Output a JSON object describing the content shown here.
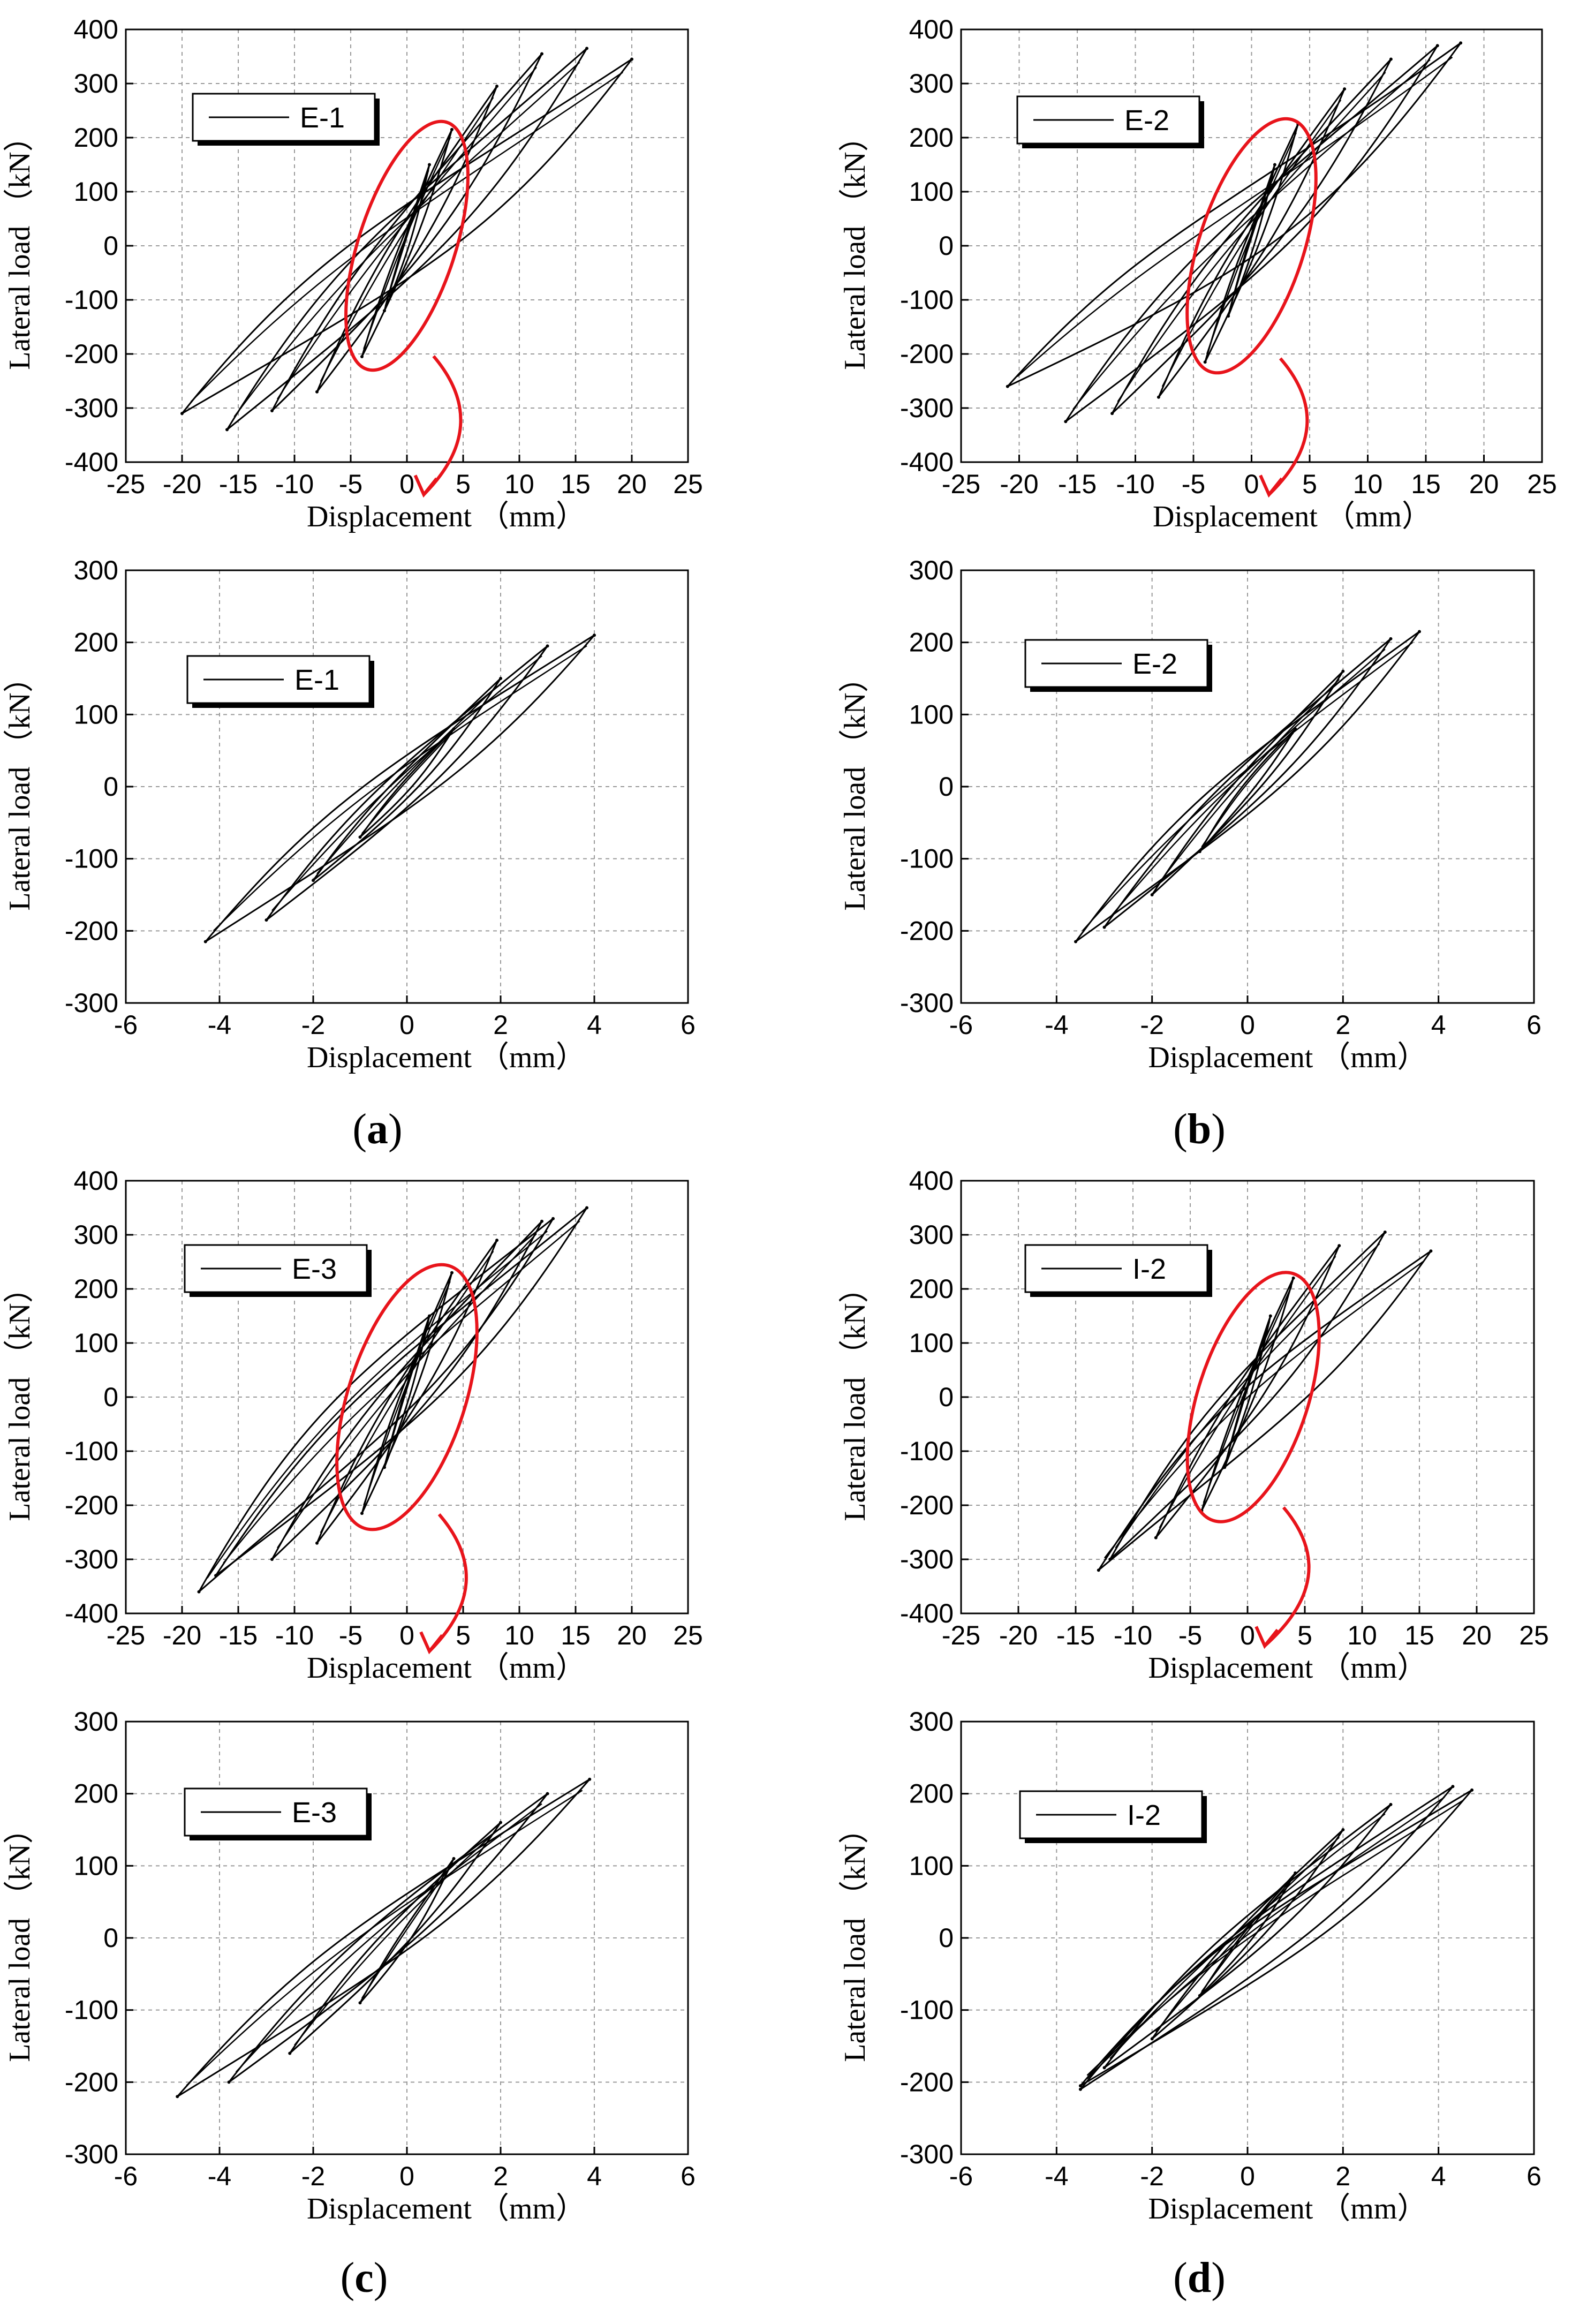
{
  "figure": {
    "captions": [
      {
        "open": "(",
        "letter": "a",
        "close": ")"
      },
      {
        "open": "(",
        "letter": "b",
        "close": ")"
      },
      {
        "open": "(",
        "letter": "c",
        "close": ")"
      },
      {
        "open": "(",
        "letter": "d",
        "close": ")"
      }
    ]
  },
  "chart_data": [
    {
      "id": "a-top",
      "type": "line",
      "title": "",
      "xlabel": "Displacement （mm）",
      "ylabel": "Lateral load （kN）",
      "xlim": [
        -25,
        25
      ],
      "ylim": [
        -400,
        400
      ],
      "xticks": [
        -25,
        -20,
        -15,
        -10,
        -5,
        0,
        5,
        10,
        15,
        20,
        25
      ],
      "yticks": [
        -400,
        -300,
        -200,
        -100,
        0,
        100,
        200,
        300,
        400
      ],
      "grid": true,
      "legend": [
        "E-1"
      ],
      "legend_position": "top-left",
      "series": [
        {
          "name": "E-1",
          "peaks": [
            {
              "pos_disp": 2,
              "pos_load": 150,
              "neg_disp": -2,
              "neg_load": -120
            },
            {
              "pos_disp": 4,
              "pos_load": 215,
              "neg_disp": -4,
              "neg_load": -205
            },
            {
              "pos_disp": 8,
              "pos_load": 295,
              "neg_disp": -8,
              "neg_load": -270
            },
            {
              "pos_disp": 12,
              "pos_load": 355,
              "neg_disp": -12,
              "neg_load": -305
            },
            {
              "pos_disp": 16,
              "pos_load": 365,
              "neg_disp": -16,
              "neg_load": -340
            },
            {
              "pos_disp": 20,
              "pos_load": 345,
              "neg_disp": -20,
              "neg_load": -310
            }
          ]
        }
      ],
      "highlight": {
        "color": "#e8141b",
        "center": [
          0,
          0
        ],
        "half_width": 4.3,
        "half_height": 240,
        "arrow_to": [
          1.5,
          -460
        ]
      }
    },
    {
      "id": "a-bottom",
      "type": "line",
      "title": "",
      "xlabel": "Displacement （mm）",
      "ylabel": "Lateral load （kN）",
      "xlim": [
        -6,
        6
      ],
      "ylim": [
        -300,
        300
      ],
      "xticks": [
        -6,
        -4,
        -2,
        0,
        2,
        4,
        6
      ],
      "yticks": [
        -300,
        -200,
        -100,
        0,
        100,
        200,
        300
      ],
      "grid": true,
      "legend": [
        "E-1"
      ],
      "legend_position": "top-left",
      "series": [
        {
          "name": "E-1",
          "peaks": [
            {
              "pos_disp": 1,
              "pos_load": 80,
              "neg_disp": -1,
              "neg_load": -70
            },
            {
              "pos_disp": 2,
              "pos_load": 150,
              "neg_disp": -2,
              "neg_load": -130
            },
            {
              "pos_disp": 3,
              "pos_load": 195,
              "neg_disp": -3,
              "neg_load": -185
            },
            {
              "pos_disp": 4,
              "pos_load": 210,
              "neg_disp": -4.3,
              "neg_load": -215
            }
          ]
        }
      ]
    },
    {
      "id": "b-top",
      "type": "line",
      "title": "",
      "xlabel": "Displacement （mm）",
      "ylabel": "Lateral load （kN）",
      "xlim": [
        -25,
        25
      ],
      "ylim": [
        -400,
        400
      ],
      "xticks": [
        -25,
        -20,
        -15,
        -10,
        -5,
        0,
        5,
        10,
        15,
        20,
        25
      ],
      "yticks": [
        -400,
        -300,
        -200,
        -100,
        0,
        100,
        200,
        300,
        400
      ],
      "grid": true,
      "legend": [
        "E-2"
      ],
      "legend_position": "top-left",
      "series": [
        {
          "name": "E-2",
          "peaks": [
            {
              "pos_disp": 2,
              "pos_load": 150,
              "neg_disp": -2,
              "neg_load": -130
            },
            {
              "pos_disp": 4,
              "pos_load": 225,
              "neg_disp": -4,
              "neg_load": -215
            },
            {
              "pos_disp": 8,
              "pos_load": 290,
              "neg_disp": -8,
              "neg_load": -280
            },
            {
              "pos_disp": 12,
              "pos_load": 345,
              "neg_disp": -12,
              "neg_load": -310
            },
            {
              "pos_disp": 16,
              "pos_load": 370,
              "neg_disp": -16,
              "neg_load": -325
            },
            {
              "pos_disp": 18,
              "pos_load": 375,
              "neg_disp": -21,
              "neg_load": -260
            }
          ]
        }
      ],
      "highlight": {
        "color": "#e8141b",
        "center": [
          0,
          0
        ],
        "half_width": 4.5,
        "half_height": 245,
        "arrow_to": [
          1.5,
          -460
        ]
      }
    },
    {
      "id": "b-bottom",
      "type": "line",
      "title": "",
      "xlabel": "Displacement （mm）",
      "ylabel": "Lateral load （kN）",
      "xlim": [
        -6,
        6
      ],
      "ylim": [
        -300,
        300
      ],
      "xticks": [
        -6,
        -4,
        -2,
        0,
        2,
        4,
        6
      ],
      "yticks": [
        -300,
        -200,
        -100,
        0,
        100,
        200,
        300
      ],
      "grid": true,
      "legend": [
        "E-2"
      ],
      "legend_position": "top-left",
      "series": [
        {
          "name": "E-2",
          "peaks": [
            {
              "pos_disp": 1,
              "pos_load": 80,
              "neg_disp": -1,
              "neg_load": -90
            },
            {
              "pos_disp": 2,
              "pos_load": 160,
              "neg_disp": -2,
              "neg_load": -150
            },
            {
              "pos_disp": 3,
              "pos_load": 205,
              "neg_disp": -3,
              "neg_load": -195
            },
            {
              "pos_disp": 3.6,
              "pos_load": 215,
              "neg_disp": -3.6,
              "neg_load": -215
            }
          ]
        }
      ]
    },
    {
      "id": "c-top",
      "type": "line",
      "title": "",
      "xlabel": "Displacement （mm）",
      "ylabel": "Lateral load （kN）",
      "xlim": [
        -25,
        25
      ],
      "ylim": [
        -400,
        400
      ],
      "xticks": [
        -25,
        -20,
        -15,
        -10,
        -5,
        0,
        5,
        10,
        15,
        20,
        25
      ],
      "yticks": [
        -400,
        -300,
        -200,
        -100,
        0,
        100,
        200,
        300,
        400
      ],
      "grid": true,
      "legend": [
        "E-3"
      ],
      "legend_position": "top-left",
      "series": [
        {
          "name": "E-3",
          "peaks": [
            {
              "pos_disp": 2,
              "pos_load": 150,
              "neg_disp": -2,
              "neg_load": -130
            },
            {
              "pos_disp": 4,
              "pos_load": 230,
              "neg_disp": -4,
              "neg_load": -215
            },
            {
              "pos_disp": 8,
              "pos_load": 290,
              "neg_disp": -8,
              "neg_load": -270
            },
            {
              "pos_disp": 12,
              "pos_load": 325,
              "neg_disp": -12,
              "neg_load": -300
            },
            {
              "pos_disp": 16,
              "pos_load": 350,
              "neg_disp": -17,
              "neg_load": -330
            },
            {
              "pos_disp": 13,
              "pos_load": 330,
              "neg_disp": -18.5,
              "neg_load": -360
            }
          ]
        }
      ],
      "highlight": {
        "color": "#e8141b",
        "center": [
          0,
          0
        ],
        "half_width": 5.2,
        "half_height": 255,
        "arrow_to": [
          2,
          -470
        ]
      }
    },
    {
      "id": "c-bottom",
      "type": "line",
      "title": "",
      "xlabel": "Displacement （mm）",
      "ylabel": "Lateral load （kN）",
      "xlim": [
        -6,
        6
      ],
      "ylim": [
        -300,
        300
      ],
      "xticks": [
        -6,
        -4,
        -2,
        0,
        2,
        4,
        6
      ],
      "yticks": [
        -300,
        -200,
        -100,
        0,
        100,
        200,
        300
      ],
      "grid": true,
      "legend": [
        "E-3"
      ],
      "legend_position": "top-left",
      "series": [
        {
          "name": "E-3",
          "peaks": [
            {
              "pos_disp": 1,
              "pos_load": 110,
              "neg_disp": -1,
              "neg_load": -90
            },
            {
              "pos_disp": 2,
              "pos_load": 160,
              "neg_disp": -2.5,
              "neg_load": -160
            },
            {
              "pos_disp": 3,
              "pos_load": 200,
              "neg_disp": -3.8,
              "neg_load": -200
            },
            {
              "pos_disp": 3.9,
              "pos_load": 220,
              "neg_disp": -4.9,
              "neg_load": -220
            }
          ]
        }
      ]
    },
    {
      "id": "d-top",
      "type": "line",
      "title": "",
      "xlabel": "Displacement （mm）",
      "ylabel": "Lateral load （kN）",
      "xlim": [
        -25,
        25
      ],
      "ylim": [
        -400,
        400
      ],
      "xticks": [
        -25,
        -20,
        -15,
        -10,
        -5,
        0,
        5,
        10,
        15,
        20,
        25
      ],
      "yticks": [
        -400,
        -300,
        -200,
        -100,
        0,
        100,
        200,
        300,
        400
      ],
      "grid": true,
      "legend": [
        "I-2"
      ],
      "legend_position": "top-left",
      "series": [
        {
          "name": "I-2",
          "peaks": [
            {
              "pos_disp": 2,
              "pos_load": 150,
              "neg_disp": -2,
              "neg_load": -130
            },
            {
              "pos_disp": 4,
              "pos_load": 220,
              "neg_disp": -4,
              "neg_load": -210
            },
            {
              "pos_disp": 8,
              "pos_load": 280,
              "neg_disp": -8,
              "neg_load": -260
            },
            {
              "pos_disp": 12,
              "pos_load": 305,
              "neg_disp": -12,
              "neg_load": -300
            },
            {
              "pos_disp": 16,
              "pos_load": 270,
              "neg_disp": -13,
              "neg_load": -320
            }
          ]
        }
      ],
      "highlight": {
        "color": "#e8141b",
        "center": [
          0.5,
          0
        ],
        "half_width": 4.8,
        "half_height": 240,
        "arrow_to": [
          1.5,
          -460
        ]
      }
    },
    {
      "id": "d-bottom",
      "type": "line",
      "title": "",
      "xlabel": "Displacement （mm）",
      "ylabel": "Lateral load （kN）",
      "xlim": [
        -6,
        6
      ],
      "ylim": [
        -300,
        300
      ],
      "xticks": [
        -6,
        -4,
        -2,
        0,
        2,
        4,
        6
      ],
      "yticks": [
        -300,
        -200,
        -100,
        0,
        100,
        200,
        300
      ],
      "grid": true,
      "legend": [
        "I-2"
      ],
      "legend_position": "top-left",
      "series": [
        {
          "name": "I-2",
          "peaks": [
            {
              "pos_disp": 1,
              "pos_load": 90,
              "neg_disp": -1,
              "neg_load": -80
            },
            {
              "pos_disp": 2,
              "pos_load": 150,
              "neg_disp": -2,
              "neg_load": -140
            },
            {
              "pos_disp": 3,
              "pos_load": 185,
              "neg_disp": -3,
              "neg_load": -180
            },
            {
              "pos_disp": 4.3,
              "pos_load": 210,
              "neg_disp": -3.5,
              "neg_load": -210
            },
            {
              "pos_disp": 4.7,
              "pos_load": 205,
              "neg_disp": -3.5,
              "neg_load": -205
            }
          ]
        }
      ]
    }
  ]
}
